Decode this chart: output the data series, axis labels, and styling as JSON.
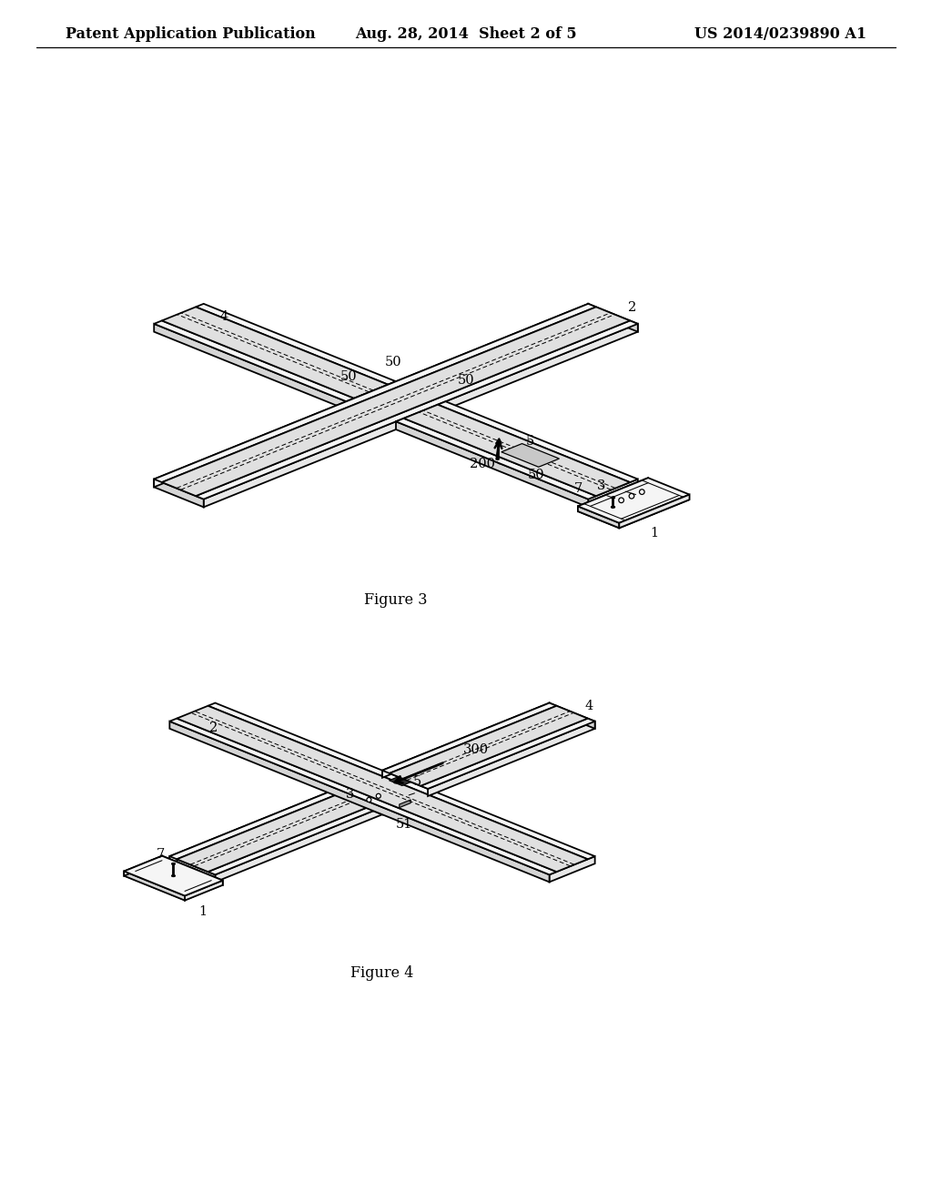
{
  "title_left": "Patent Application Publication",
  "title_mid": "Aug. 28, 2014  Sheet 2 of 5",
  "title_right": "US 2014/0239890 A1",
  "fig3_caption": "Figure 3",
  "fig4_caption": "Figure 4",
  "bg_color": "#ffffff",
  "lw_main": 1.3,
  "lw_thin": 0.75,
  "lw_dash": 0.7,
  "header_fontsize": 11.5,
  "label_fontsize": 10.5,
  "caption_fontsize": 11.5,
  "fc_top": "#f5f5f5",
  "fc_side_light": "#e8e8e8",
  "fc_side_dark": "#d5d5d5",
  "fc_groove": "#e0e0e0",
  "fc_platform": "#f0f0f0",
  "fc_dark": "#303030"
}
